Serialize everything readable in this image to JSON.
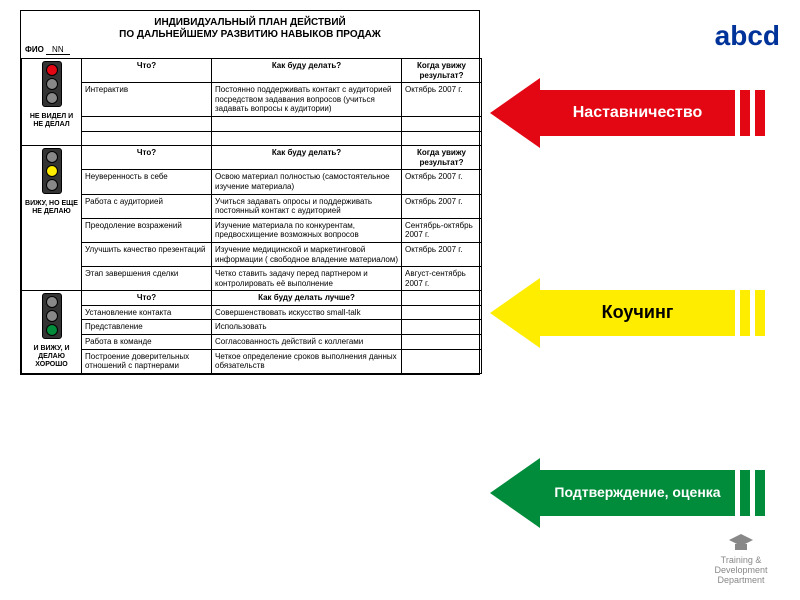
{
  "logo": "abcd",
  "colors": {
    "logo": "#003399",
    "red": "#e30613",
    "yellow": "#ffed00",
    "green": "#008c3a",
    "lamp_off": "#888888"
  },
  "doc": {
    "title_line1": "ИНДИВИДУАЛЬНЫЙ ПЛАН ДЕЙСТВИЙ",
    "title_line2": "ПО ДАЛЬНЕЙШЕМУ РАЗВИТИЮ НАВЫКОВ ПРОДАЖ",
    "fio_label": "ФИО",
    "fio_value": "NN",
    "sections": [
      {
        "light": "red",
        "caption": "НЕ ВИДЕЛ И НЕ ДЕЛАЛ",
        "headers": [
          "Что?",
          "Как буду делать?",
          "Когда увижу результат?"
        ],
        "rows": [
          [
            "Интерактив",
            "Постоянно поддерживать контакт с аудиторией посредством задавания вопросов (учиться задавать вопросы к аудитории)",
            "Октябрь 2007 г."
          ],
          [
            "",
            "",
            ""
          ],
          [
            "",
            "",
            ""
          ]
        ]
      },
      {
        "light": "yellow",
        "caption": "ВИЖУ, НО ЕЩЕ НЕ ДЕЛАЮ",
        "headers": [
          "Что?",
          "Как буду делать?",
          "Когда увижу результат?"
        ],
        "rows": [
          [
            "Неуверенность в себе",
            "Освою материал полностью (самостоятельное изучение материала)",
            "Октябрь 2007 г."
          ],
          [
            "Работа с аудиторией",
            "Учиться задавать опросы и поддерживать постоянный контакт с аудиторией",
            "Октябрь 2007 г."
          ],
          [
            "Преодоление возражений",
            "Изучение материала по конкурентам, предвосхищение возможных вопросов",
            "Сентябрь-октябрь 2007 г."
          ],
          [
            "Улучшить качество презентаций",
            "Изучение медицинской и маркетинговой информации ( свободное владение материалом)",
            "Октябрь 2007 г."
          ],
          [
            "Этап завершения сделки",
            "Четко ставить задачу перед партнером и контролировать её выполнение",
            "Август-сентябрь 2007 г."
          ]
        ]
      },
      {
        "light": "green",
        "caption": "И ВИЖУ, И ДЕЛАЮ ХОРОШО",
        "headers": [
          "Что?",
          "Как буду делать лучше?",
          ""
        ],
        "rows": [
          [
            "Установление контакта",
            "Совершенствовать искусство small-talk",
            ""
          ],
          [
            "Представление",
            "Использовать",
            ""
          ],
          [
            "Работа в команде",
            "Согласованность действий с коллегами",
            ""
          ],
          [
            "Построение доверительных отношений с партнерами",
            "Четкое определение сроков выполнения данных обязательств",
            ""
          ]
        ]
      }
    ]
  },
  "arrows": [
    {
      "label": "Наставничество",
      "color": "#e30613",
      "text_color": "#ffffff",
      "fontsize": 16
    },
    {
      "label": "Коучинг",
      "color": "#ffed00",
      "text_color": "#000000",
      "fontsize": 18
    },
    {
      "label": "Подтверждение, оценка",
      "color": "#008c3a",
      "text_color": "#ffffff",
      "fontsize": 14
    }
  ],
  "watermark": "Training & Development Department"
}
